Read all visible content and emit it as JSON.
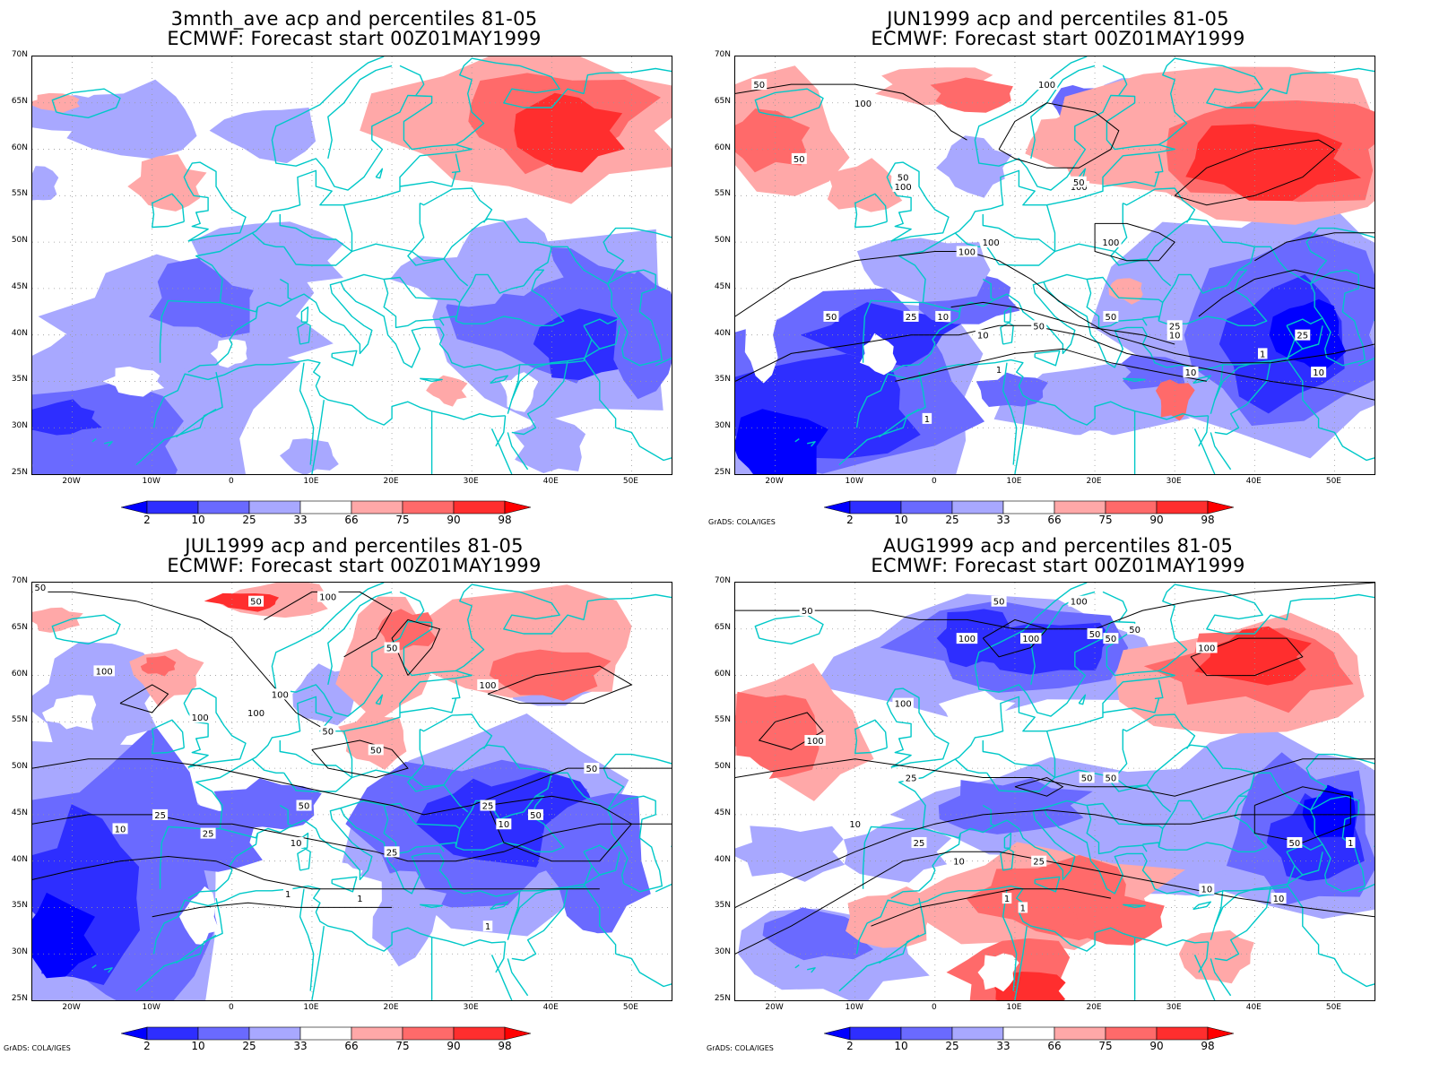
{
  "panels": [
    {
      "id": "p1",
      "title1": "3mnth_ave acp and percentiles 81-05",
      "title2": "ECMWF: Forecast start 00Z01MAY1999",
      "credit": "",
      "contours": false
    },
    {
      "id": "p2",
      "title1": "JUN1999 acp and percentiles 81-05",
      "title2": "ECMWF: Forecast start 00Z01MAY1999",
      "credit": "GrADS: COLA/IGES",
      "contours": true
    },
    {
      "id": "p3",
      "title1": "JUL1999 acp and percentiles 81-05",
      "title2": "ECMWF: Forecast start 00Z01MAY1999",
      "credit": "GrADS: COLA/IGES",
      "contours": true
    },
    {
      "id": "p4",
      "title1": "AUG1999 acp and percentiles 81-05",
      "title2": "ECMWF: Forecast start 00Z01MAY1999",
      "credit": "GrADS: COLA/IGES",
      "contours": true
    }
  ],
  "lat_labels": [
    "70N",
    "65N",
    "60N",
    "55N",
    "50N",
    "45N",
    "40N",
    "35N",
    "30N",
    "25N"
  ],
  "lon_labels": [
    "20W",
    "10W",
    "0",
    "10E",
    "20E",
    "30E",
    "40E",
    "50E"
  ],
  "colorbar": {
    "labels": [
      "2",
      "10",
      "25",
      "33",
      "66",
      "75",
      "90",
      "98"
    ],
    "colors": [
      "#0000ff",
      "#2e2eff",
      "#6a6aff",
      "#a8a8ff",
      "#ffffff",
      "#ffa8a8",
      "#ff6a6a",
      "#ff2e2e",
      "#ff0000"
    ]
  },
  "contour_labels": {
    "p2": [
      "50",
      "100",
      "100",
      "50",
      "50",
      "100",
      "100",
      "50",
      "100",
      "100",
      "50",
      "10",
      "50",
      "25",
      "10",
      "50",
      "25",
      "1",
      "10",
      "10",
      "25",
      "1",
      "10",
      "100",
      "1"
    ],
    "p3": [
      "50",
      "50",
      "100",
      "100",
      "50",
      "100",
      "100",
      "100",
      "50",
      "50",
      "100",
      "10",
      "25",
      "50",
      "25",
      "10",
      "25",
      "1",
      "10",
      "25",
      "50",
      "1",
      "1",
      "50"
    ],
    "p4": [
      "50",
      "50",
      "100",
      "100",
      "50",
      "50",
      "100",
      "100",
      "100",
      "50",
      "100",
      "50",
      "25",
      "10",
      "25",
      "50",
      "25",
      "10",
      "1",
      "10",
      "50",
      "1",
      "10",
      "1"
    ]
  },
  "colors": {
    "coast": "#00c8c8",
    "grid": "#999999",
    "contour": "#000000"
  }
}
